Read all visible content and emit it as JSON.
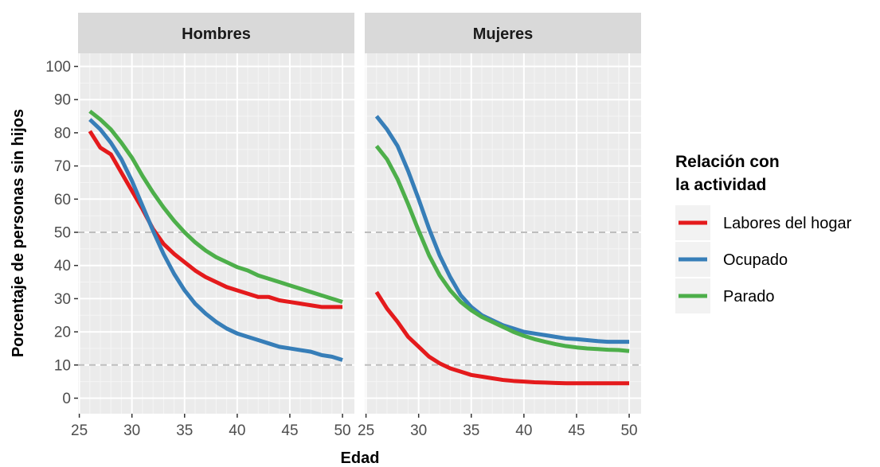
{
  "chart_data": {
    "type": "line",
    "xlabel": "Edad",
    "ylabel": "Porcentaje de personas sin hijos",
    "xlim": [
      25,
      50
    ],
    "ylim": [
      0,
      100
    ],
    "x_ticks": [
      25,
      30,
      35,
      40,
      45,
      50
    ],
    "y_ticks": [
      0,
      10,
      20,
      30,
      40,
      50,
      60,
      70,
      80,
      90,
      100
    ],
    "reference_lines_y": [
      10,
      50
    ],
    "grid": true,
    "legend": {
      "title": "Relación con\n la actividad",
      "placement": "right",
      "items": [
        {
          "name": "Labores del hogar",
          "color": "#e41a1c"
        },
        {
          "name": "Ocupado",
          "color": "#377eb8"
        },
        {
          "name": "Parado",
          "color": "#4daf4a"
        }
      ]
    },
    "panels": [
      {
        "title": "Hombres",
        "series": [
          {
            "name": "Labores del hogar",
            "color": "#e41a1c",
            "x": [
              26,
              27,
              28,
              29,
              30,
              31,
              32,
              33,
              34,
              35,
              36,
              37,
              38,
              39,
              40,
              41,
              42,
              43,
              44,
              45,
              46,
              47,
              48,
              49,
              50
            ],
            "values": [
              80.5,
              75.5,
              73.5,
              68,
              62.5,
              57,
              51,
              46.5,
              43.5,
              41,
              38.5,
              36.5,
              35,
              33.5,
              32.5,
              31.5,
              30.5,
              30.5,
              29.5,
              29,
              28.5,
              28,
              27.5,
              27.5,
              27.5
            ]
          },
          {
            "name": "Ocupado",
            "color": "#377eb8",
            "x": [
              26,
              27,
              28,
              29,
              30,
              31,
              32,
              33,
              34,
              35,
              36,
              37,
              38,
              39,
              40,
              41,
              42,
              43,
              44,
              45,
              46,
              47,
              48,
              49,
              50
            ],
            "values": [
              84,
              81,
              77,
              72,
              65.5,
              58,
              50.5,
              43.5,
              37.5,
              32.5,
              28.5,
              25.5,
              23,
              21,
              19.5,
              18.5,
              17.5,
              16.5,
              15.5,
              15,
              14.5,
              14,
              13,
              12.5,
              11.5
            ]
          },
          {
            "name": "Parado",
            "color": "#4daf4a",
            "x": [
              26,
              27,
              28,
              29,
              30,
              31,
              32,
              33,
              34,
              35,
              36,
              37,
              38,
              39,
              40,
              41,
              42,
              43,
              44,
              45,
              46,
              47,
              48,
              49,
              50
            ],
            "values": [
              86.5,
              84,
              81,
              77,
              72.5,
              67,
              62,
              57.5,
              53.5,
              50,
              47,
              44.5,
              42.5,
              41,
              39.5,
              38.5,
              37,
              36,
              35,
              34,
              33,
              32,
              31,
              30,
              29
            ]
          }
        ]
      },
      {
        "title": "Mujeres",
        "series": [
          {
            "name": "Labores del hogar",
            "color": "#e41a1c",
            "x": [
              26,
              27,
              28,
              29,
              30,
              31,
              32,
              33,
              34,
              35,
              36,
              37,
              38,
              39,
              40,
              41,
              42,
              43,
              44,
              45,
              46,
              47,
              48,
              49,
              50
            ],
            "values": [
              32,
              27,
              23,
              18.5,
              15.5,
              12.5,
              10.5,
              9,
              8,
              7,
              6.5,
              6,
              5.5,
              5.2,
              5,
              4.8,
              4.7,
              4.6,
              4.5,
              4.5,
              4.5,
              4.5,
              4.5,
              4.5,
              4.5
            ]
          },
          {
            "name": "Ocupado",
            "color": "#377eb8",
            "x": [
              26,
              27,
              28,
              29,
              30,
              31,
              32,
              33,
              34,
              35,
              36,
              37,
              38,
              39,
              40,
              41,
              42,
              43,
              44,
              45,
              46,
              47,
              48,
              49,
              50
            ],
            "values": [
              85,
              81,
              76,
              68.5,
              60,
              51,
              43,
              36.5,
              31,
              27.5,
              25,
              23.5,
              22,
              21,
              20,
              19.5,
              19,
              18.5,
              18,
              17.8,
              17.5,
              17.2,
              17,
              17,
              17
            ]
          },
          {
            "name": "Parado",
            "color": "#4daf4a",
            "x": [
              26,
              27,
              28,
              29,
              30,
              31,
              32,
              33,
              34,
              35,
              36,
              37,
              38,
              39,
              40,
              41,
              42,
              43,
              44,
              45,
              46,
              47,
              48,
              49,
              50
            ],
            "values": [
              76,
              72,
              66,
              58.5,
              50.5,
              43,
              37,
              32.5,
              29,
              26.5,
              24.5,
              23,
              21.5,
              20,
              18.8,
              17.8,
              17,
              16.3,
              15.7,
              15.3,
              15,
              14.8,
              14.6,
              14.5,
              14.2
            ]
          }
        ]
      }
    ]
  }
}
